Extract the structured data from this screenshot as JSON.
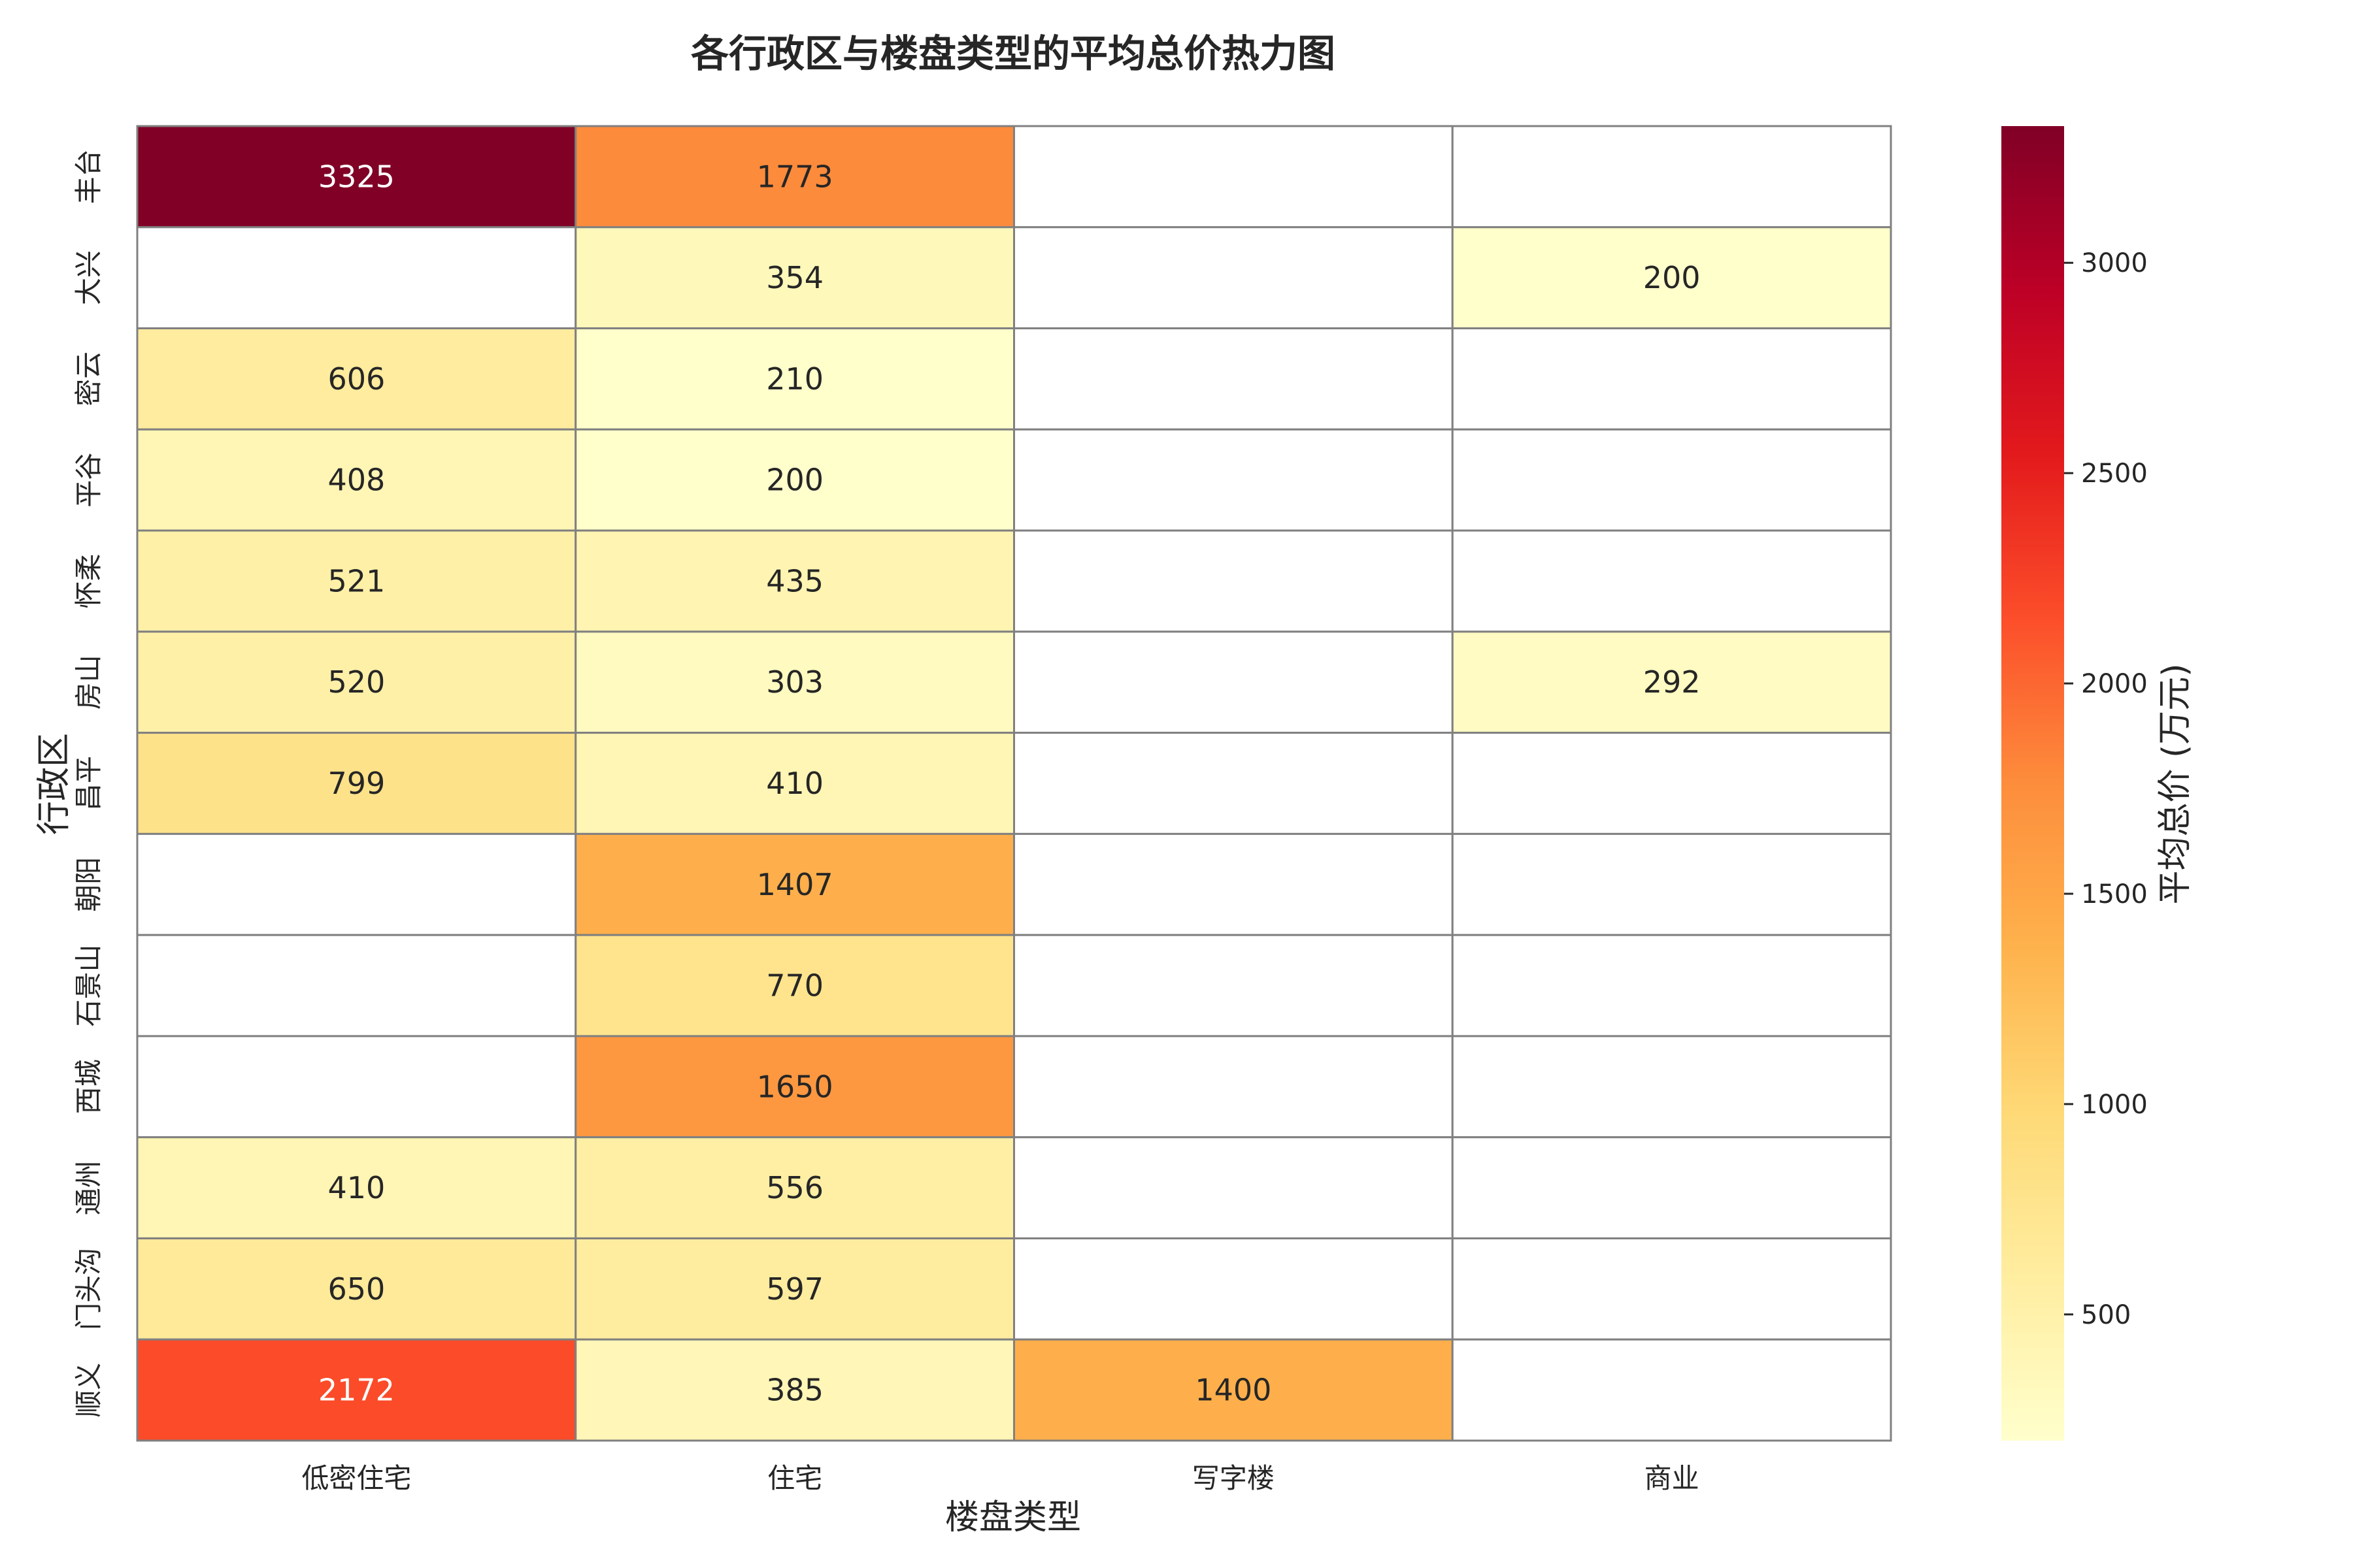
{
  "chart_data": {
    "type": "heatmap",
    "title": "各行政区与楼盘类型的平均总价热力图",
    "xlabel": "楼盘类型",
    "ylabel": "行政区",
    "colorbar_label": "平均总价 (万元)",
    "colormap": "YlOrRd",
    "value_range": [
      200,
      3325
    ],
    "colorbar_ticks": [
      "500",
      "1000",
      "1500",
      "2000",
      "2500",
      "3000"
    ],
    "columns": [
      "低密住宅",
      "住宅",
      "写字楼",
      "商业"
    ],
    "rows": [
      "丰台",
      "大兴",
      "密云",
      "平谷",
      "怀柔",
      "房山",
      "昌平",
      "朝阳",
      "石景山",
      "西城",
      "通州",
      "门头沟",
      "顺义"
    ],
    "values": [
      [
        3325,
        1773,
        null,
        null
      ],
      [
        null,
        354,
        null,
        200
      ],
      [
        606,
        210,
        null,
        null
      ],
      [
        408,
        200,
        null,
        null
      ],
      [
        521,
        435,
        null,
        null
      ],
      [
        520,
        303,
        null,
        292
      ],
      [
        799,
        410,
        null,
        null
      ],
      [
        null,
        1407,
        null,
        null
      ],
      [
        null,
        770,
        null,
        null
      ],
      [
        null,
        1650,
        null,
        null
      ],
      [
        410,
        556,
        null,
        null
      ],
      [
        650,
        597,
        null,
        null
      ],
      [
        2172,
        385,
        1400,
        null
      ]
    ],
    "grid": true,
    "colorbar_position": "right"
  }
}
